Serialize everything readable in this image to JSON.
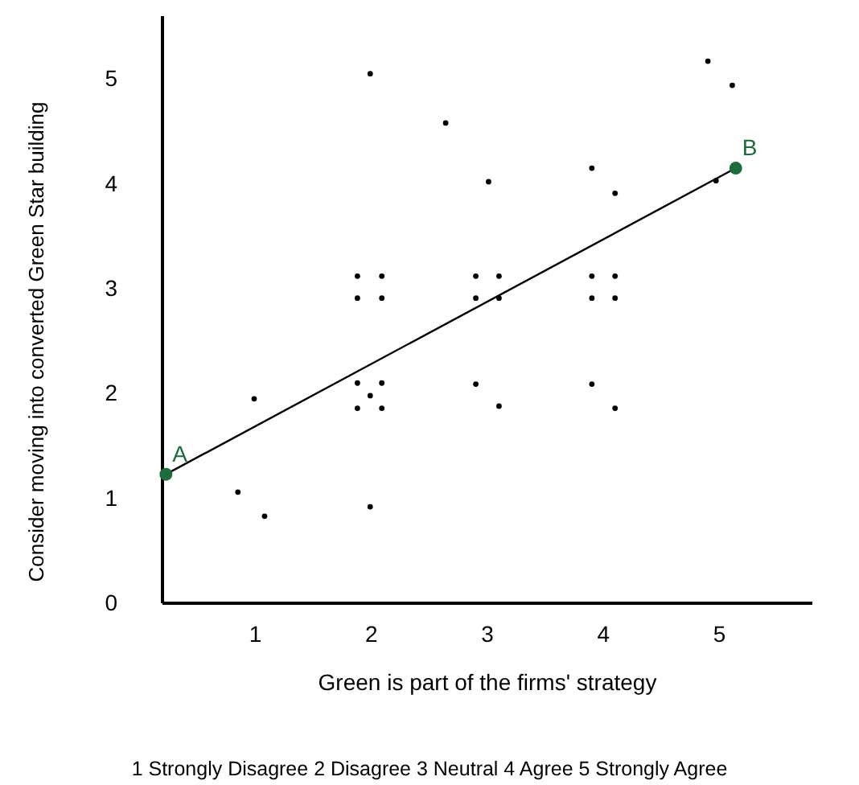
{
  "chart_data": {
    "type": "scatter",
    "xlabel": "Green is part of the firms' strategy",
    "ylabel": "Consider moving into converted Green Star building",
    "xlim": [
      0.2,
      5.8
    ],
    "ylim": [
      0,
      5.6
    ],
    "xticks": [
      1,
      2,
      3,
      4,
      5
    ],
    "yticks": [
      0,
      1,
      2,
      3,
      4,
      5
    ],
    "grid": false,
    "series": [
      {
        "marker": "circle",
        "color": "#000000",
        "x": [
          0.85,
          0.99,
          1.08,
          1.88,
          2.09,
          1.88,
          2.09,
          1.88,
          2.09,
          1.88,
          2.09,
          1.99,
          1.99,
          1.99,
          2.64,
          2.9,
          3.1,
          2.9,
          3.1,
          3.01,
          2.9,
          3.1,
          3.9,
          4.1,
          3.9,
          4.1,
          3.9,
          4.1,
          3.9,
          4.1,
          4.9,
          5.11
        ],
        "values": [
          1.06,
          1.95,
          0.83,
          3.12,
          3.12,
          2.91,
          2.91,
          2.1,
          2.1,
          1.86,
          1.86,
          1.98,
          5.05,
          0.92,
          4.58,
          3.12,
          3.12,
          2.91,
          2.91,
          4.02,
          2.09,
          1.88,
          3.12,
          3.12,
          2.91,
          2.91,
          4.15,
          3.91,
          2.09,
          1.86,
          5.17,
          4.94
        ]
      },
      {
        "type": "line",
        "marker": "none",
        "color": "#000000",
        "x": [
          0.23,
          5.14
        ],
        "values": [
          1.23,
          4.15
        ]
      },
      {
        "marker": "circle",
        "color": "#1e6b3c",
        "x": [
          0.23,
          5.14
        ],
        "values": [
          1.23,
          4.15
        ]
      },
      {
        "marker": "circle",
        "color": "#000000",
        "x": [
          4.97
        ],
        "values": [
          4.03
        ]
      }
    ],
    "annotations": [
      {
        "text": "A",
        "x": 0.23,
        "y": 1.23
      },
      {
        "text": "B",
        "x": 5.14,
        "y": 4.15
      },
      "1 Strongly Disagree   2 Disagree   3 Neutral   4 Agree   5 Strongly Agree"
    ]
  }
}
